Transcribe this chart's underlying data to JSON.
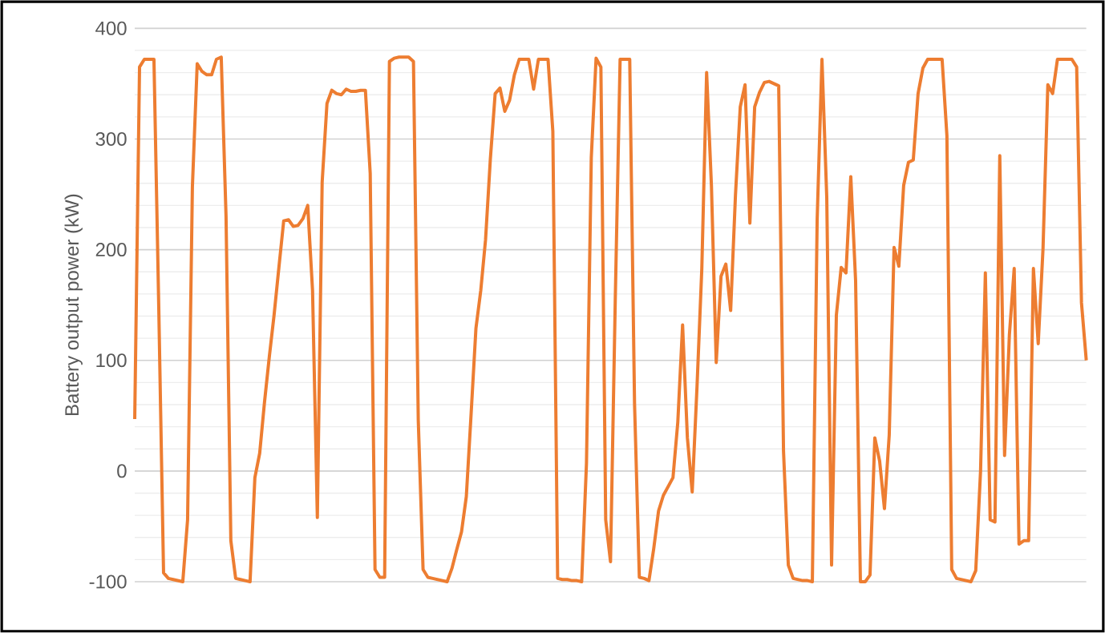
{
  "chart_data": {
    "type": "line",
    "ylabel": "Battery output power (kW)",
    "color": "#ed7d31",
    "ylim": [
      -100,
      400
    ],
    "yticks": [
      -100,
      0,
      100,
      200,
      300,
      400
    ],
    "grid": "y",
    "tick_labels": "y",
    "categories": [
      null,
      null,
      null,
      null,
      null,
      null,
      null,
      null,
      null,
      null,
      null,
      null,
      null,
      null,
      null,
      null,
      null,
      null,
      null,
      null,
      null,
      null,
      null,
      null,
      null,
      null,
      null,
      null,
      null,
      null,
      null,
      null,
      null,
      null,
      null,
      null,
      null,
      null,
      null,
      null,
      null,
      null,
      null,
      null,
      null,
      null,
      null,
      null,
      null,
      null,
      null,
      null,
      null,
      null,
      null,
      null,
      null,
      null,
      null,
      null,
      null,
      null,
      null,
      null,
      null,
      null,
      null,
      null,
      null,
      null,
      null,
      null,
      null,
      null,
      null,
      null,
      null,
      null,
      null,
      null,
      null,
      null,
      null,
      null,
      null,
      null,
      null,
      null,
      null,
      null,
      null,
      null,
      null,
      null,
      null,
      null,
      null,
      null,
      null,
      null,
      null,
      null,
      null,
      null,
      null,
      null,
      null,
      null,
      null,
      null,
      null,
      null,
      null,
      null,
      null,
      null,
      null,
      null,
      null,
      null,
      null,
      null,
      null,
      null,
      null,
      null,
      null,
      null,
      null,
      null,
      null,
      null,
      null,
      null,
      null,
      null,
      null,
      null,
      null,
      null,
      null,
      null,
      null,
      null,
      null,
      null,
      null,
      null,
      null,
      null,
      null,
      null,
      null,
      null,
      null,
      null,
      null,
      null,
      null,
      null,
      null,
      null,
      null,
      null,
      null,
      null,
      null,
      null,
      null,
      null,
      null,
      null,
      null,
      null,
      null,
      null,
      null,
      null,
      null,
      null,
      null,
      null,
      null,
      null,
      null,
      null,
      null,
      null,
      null,
      null,
      null,
      null,
      null,
      null,
      null,
      null,
      null,
      null,
      null
    ],
    "values": [
      47,
      365,
      372,
      372,
      372,
      148,
      -92,
      -97,
      -98,
      -99,
      -100,
      -44,
      257,
      368,
      361,
      358,
      358,
      372,
      374,
      230,
      -63,
      -97,
      -98,
      -99,
      -100,
      -6,
      16,
      62,
      103,
      141,
      184,
      226,
      227,
      221,
      222,
      228,
      240,
      163,
      -42,
      261,
      332,
      344,
      341,
      340,
      345,
      343,
      343,
      344,
      344,
      269,
      -89,
      -96,
      -96,
      370,
      373,
      374,
      374,
      374,
      370,
      46,
      -89,
      -96,
      -97,
      -98,
      -99,
      -100,
      -88,
      -71,
      -55,
      -23,
      52,
      129,
      163,
      209,
      282,
      341,
      346,
      325,
      335,
      358,
      372,
      372,
      372,
      345,
      372,
      372,
      372,
      307,
      -97,
      -98,
      -98,
      -99,
      -99,
      -100,
      7,
      283,
      373,
      365,
      -44,
      -82,
      157,
      372,
      372,
      372,
      61,
      -96,
      -97,
      -99,
      -70,
      -36,
      -22,
      -14,
      -6,
      44,
      132,
      30,
      -19,
      76,
      183,
      360,
      258,
      98,
      176,
      187,
      145,
      249,
      329,
      349,
      224,
      329,
      342,
      351,
      352,
      350,
      348,
      18,
      -85,
      -97,
      -98,
      -99,
      -99,
      -100,
      227,
      372,
      247,
      -85,
      141,
      184,
      179,
      266,
      172,
      -100,
      -100,
      -94,
      30,
      9,
      -34,
      33,
      202,
      185,
      258,
      279,
      281,
      341,
      364,
      372,
      372,
      372,
      372,
      303,
      -89,
      -97,
      -98,
      -99,
      -100,
      -90,
      0,
      179,
      -44,
      -46,
      285,
      14,
      123,
      183,
      -66,
      -63,
      -63,
      183,
      115,
      201,
      349,
      341,
      372,
      372,
      372,
      372,
      365,
      152,
      100
    ]
  }
}
